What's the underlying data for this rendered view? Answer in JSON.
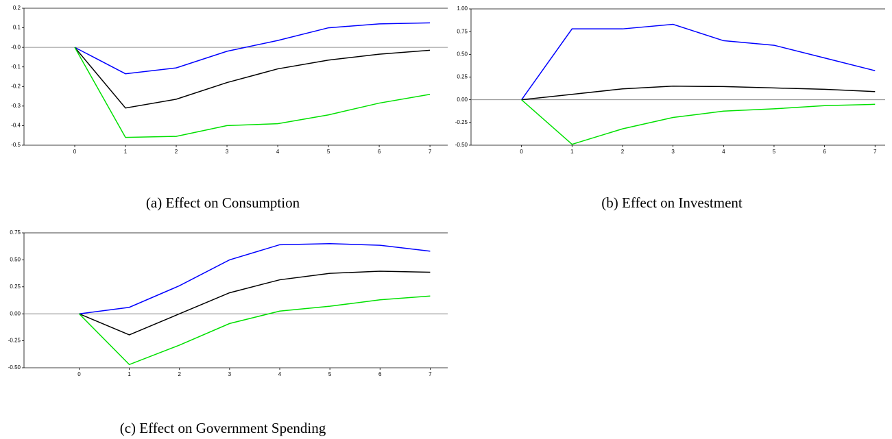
{
  "chart_data": [
    {
      "type": "line",
      "title": "(a) Effect on Consumption",
      "x": [
        0,
        1,
        2,
        3,
        4,
        5,
        6,
        7
      ],
      "xlim": [
        -1,
        7.35
      ],
      "xticks": [
        0,
        1,
        2,
        3,
        4,
        5,
        6,
        7
      ],
      "ylim": [
        -0.5,
        0.2
      ],
      "yticks": [
        0.2,
        0.1,
        {
          "value": 0,
          "label": "-0.0"
        },
        -0.1,
        -0.2,
        -0.3,
        -0.4,
        -0.5
      ],
      "series": [
        {
          "color": "#0000ff",
          "values": [
            0,
            -0.135,
            -0.105,
            -0.02,
            0.035,
            0.1,
            0.12,
            0.125
          ]
        },
        {
          "color": "#000000",
          "values": [
            0,
            -0.31,
            -0.265,
            -0.18,
            -0.11,
            -0.065,
            -0.035,
            -0.015
          ]
        },
        {
          "color": "#00e000",
          "values": [
            0,
            -0.46,
            -0.455,
            -0.4,
            -0.39,
            -0.345,
            -0.285,
            -0.24
          ]
        }
      ]
    },
    {
      "type": "line",
      "title": "(b) Effect on Investment",
      "x": [
        0,
        1,
        2,
        3,
        4,
        5,
        6,
        7
      ],
      "xlim": [
        -1,
        7.2
      ],
      "xticks": [
        0,
        1,
        2,
        3,
        4,
        5,
        6,
        7
      ],
      "ylim": [
        -0.5,
        1
      ],
      "yticks": [
        {
          "value": 1,
          "label": "1.00"
        },
        0.75,
        {
          "value": 0.5,
          "label": "0.50"
        },
        0.25,
        {
          "value": 0,
          "label": "0.00"
        },
        -0.25,
        {
          "value": -0.5,
          "label": "-0.50"
        }
      ],
      "series": [
        {
          "color": "#0000ff",
          "values": [
            0,
            0.78,
            0.78,
            0.83,
            0.65,
            0.6,
            0.46,
            0.32
          ]
        },
        {
          "color": "#000000",
          "values": [
            0,
            0.06,
            0.12,
            0.15,
            0.145,
            0.13,
            0.115,
            0.09
          ]
        },
        {
          "color": "#00e000",
          "values": [
            0,
            -0.49,
            -0.32,
            -0.195,
            -0.125,
            -0.1,
            -0.065,
            -0.05
          ]
        }
      ]
    },
    {
      "type": "line",
      "title": "(c) Effect on Government Spending",
      "x": [
        0,
        1,
        2,
        3,
        4,
        5,
        6,
        7
      ],
      "xlim": [
        -1.1,
        7.35
      ],
      "xticks": [
        0,
        1,
        2,
        3,
        4,
        5,
        6,
        7
      ],
      "ylim": [
        -0.5,
        0.75
      ],
      "yticks": [
        0.75,
        {
          "value": 0.5,
          "label": "0.50"
        },
        0.25,
        {
          "value": 0,
          "label": "0.00"
        },
        -0.25,
        {
          "value": -0.5,
          "label": "-0.50"
        }
      ],
      "series": [
        {
          "color": "#0000ff",
          "values": [
            0,
            0.06,
            0.26,
            0.5,
            0.64,
            0.65,
            0.635,
            0.58
          ]
        },
        {
          "color": "#000000",
          "values": [
            0,
            -0.195,
            0,
            0.195,
            0.315,
            0.375,
            0.395,
            0.385
          ]
        },
        {
          "color": "#00e000",
          "values": [
            0,
            -0.47,
            -0.29,
            -0.09,
            0.025,
            0.07,
            0.13,
            0.165
          ]
        }
      ]
    }
  ]
}
